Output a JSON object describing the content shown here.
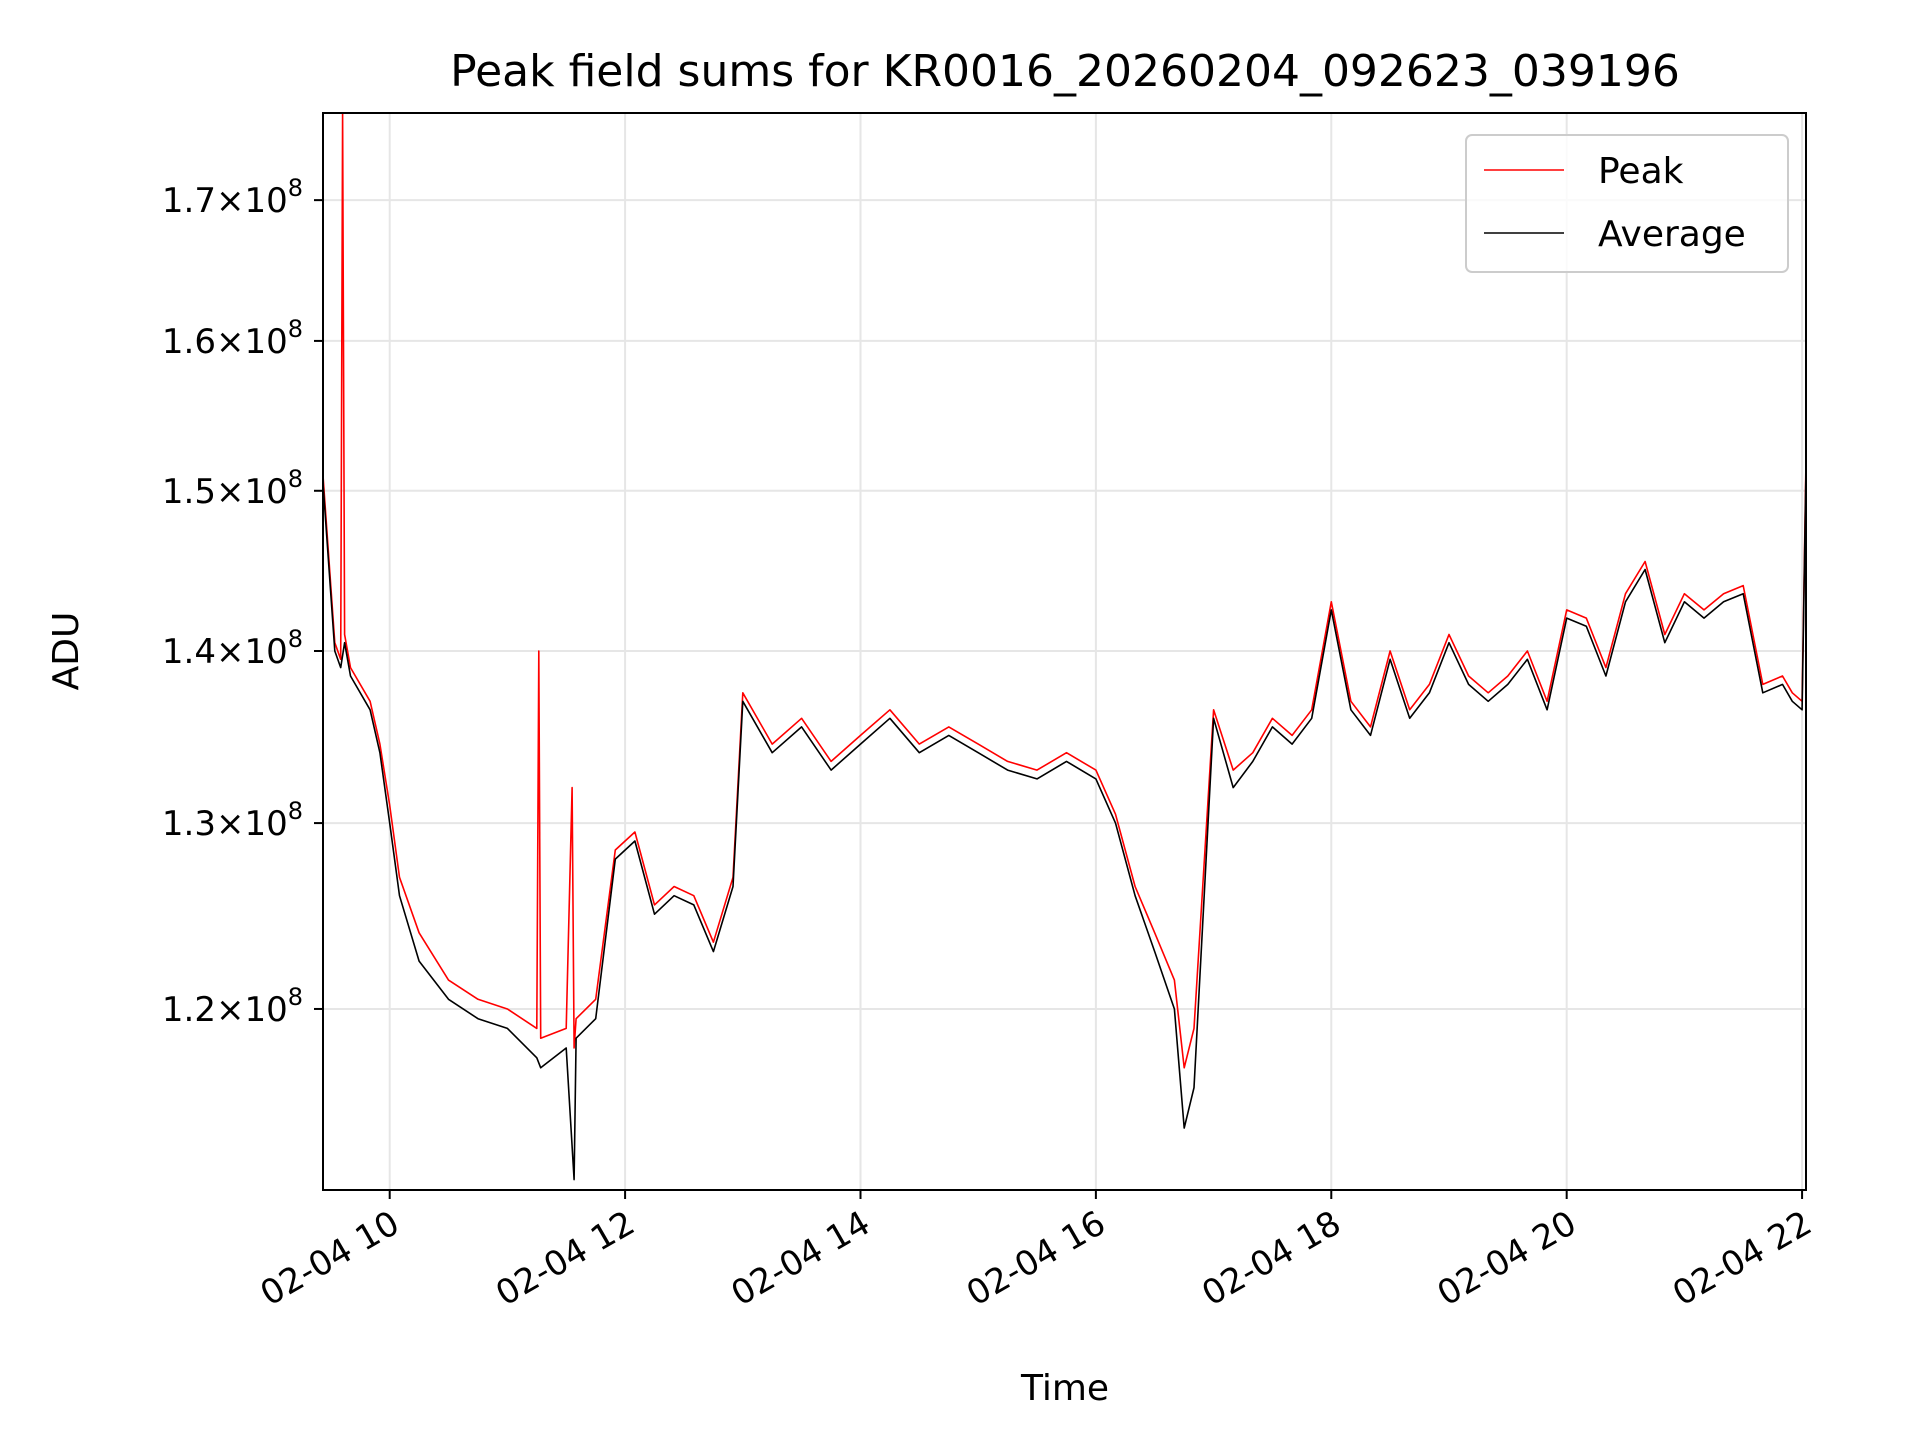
{
  "chart_data": {
    "type": "line",
    "title": "Peak field sums for KR0016_20260204_092623_039196",
    "xlabel": "Time",
    "ylabel": "ADU",
    "x_axis": "datetime",
    "xlim": [
      "2026-02-04 09:26",
      "2026-02-04 22:02"
    ],
    "ylim": [
      111000000,
      176500000
    ],
    "y_scale": "log",
    "x_ticks": [
      "02-04 10",
      "02-04 12",
      "02-04 14",
      "02-04 16",
      "02-04 18",
      "02-04 20",
      "02-04 22"
    ],
    "y_ticks": [
      {
        "base": "1.2",
        "exp": "8",
        "value": 120000000
      },
      {
        "base": "1.3",
        "exp": "8",
        "value": 130000000
      },
      {
        "base": "1.4",
        "exp": "8",
        "value": 140000000
      },
      {
        "base": "1.5",
        "exp": "8",
        "value": 150000000
      },
      {
        "base": "1.6",
        "exp": "8",
        "value": 160000000
      },
      {
        "base": "1.7",
        "exp": "8",
        "value": 170000000
      }
    ],
    "grid": true,
    "legend_position": "upper right",
    "series": [
      {
        "name": "Peak",
        "color": "#ff0000",
        "x": [
          "2026-02-04 09:26",
          "2026-02-04 09:32",
          "2026-02-04 09:35",
          "2026-02-04 09:36",
          "2026-02-04 09:37",
          "2026-02-04 09:40",
          "2026-02-04 09:50",
          "2026-02-04 09:55",
          "2026-02-04 10:00",
          "2026-02-04 10:05",
          "2026-02-04 10:15",
          "2026-02-04 10:30",
          "2026-02-04 10:45",
          "2026-02-04 11:00",
          "2026-02-04 11:15",
          "2026-02-04 11:16",
          "2026-02-04 11:17",
          "2026-02-04 11:30",
          "2026-02-04 11:33",
          "2026-02-04 11:34",
          "2026-02-04 11:35",
          "2026-02-04 11:45",
          "2026-02-04 11:55",
          "2026-02-04 12:05",
          "2026-02-04 12:15",
          "2026-02-04 12:25",
          "2026-02-04 12:35",
          "2026-02-04 12:45",
          "2026-02-04 12:55",
          "2026-02-04 13:00",
          "2026-02-04 13:15",
          "2026-02-04 13:30",
          "2026-02-04 13:45",
          "2026-02-04 14:00",
          "2026-02-04 14:15",
          "2026-02-04 14:30",
          "2026-02-04 14:45",
          "2026-02-04 15:00",
          "2026-02-04 15:15",
          "2026-02-04 15:30",
          "2026-02-04 15:45",
          "2026-02-04 16:00",
          "2026-02-04 16:10",
          "2026-02-04 16:20",
          "2026-02-04 16:30",
          "2026-02-04 16:40",
          "2026-02-04 16:45",
          "2026-02-04 16:50",
          "2026-02-04 17:00",
          "2026-02-04 17:10",
          "2026-02-04 17:20",
          "2026-02-04 17:30",
          "2026-02-04 17:40",
          "2026-02-04 17:50",
          "2026-02-04 18:00",
          "2026-02-04 18:10",
          "2026-02-04 18:20",
          "2026-02-04 18:30",
          "2026-02-04 18:40",
          "2026-02-04 18:50",
          "2026-02-04 19:00",
          "2026-02-04 19:10",
          "2026-02-04 19:20",
          "2026-02-04 19:30",
          "2026-02-04 19:40",
          "2026-02-04 19:50",
          "2026-02-04 20:00",
          "2026-02-04 20:10",
          "2026-02-04 20:20",
          "2026-02-04 20:30",
          "2026-02-04 20:40",
          "2026-02-04 20:50",
          "2026-02-04 21:00",
          "2026-02-04 21:10",
          "2026-02-04 21:20",
          "2026-02-04 21:30",
          "2026-02-04 21:40",
          "2026-02-04 21:50",
          "2026-02-04 21:55",
          "2026-02-04 22:00",
          "2026-02-04 22:02"
        ],
        "y": [
          151000000,
          140500000,
          139500000,
          176500000,
          141000000,
          139000000,
          137000000,
          134500000,
          131000000,
          127000000,
          124000000,
          121500000,
          120500000,
          120000000,
          119000000,
          140000000,
          118500000,
          119000000,
          132000000,
          118000000,
          119500000,
          120500000,
          128500000,
          129500000,
          125500000,
          126500000,
          126000000,
          123500000,
          127000000,
          137500000,
          134500000,
          136000000,
          133500000,
          135000000,
          136500000,
          134500000,
          135500000,
          134500000,
          133500000,
          133000000,
          134000000,
          133000000,
          130500000,
          126500000,
          124000000,
          121500000,
          117000000,
          119000000,
          136500000,
          133000000,
          134000000,
          136000000,
          135000000,
          136500000,
          143000000,
          137000000,
          135500000,
          140000000,
          136500000,
          138000000,
          141000000,
          138500000,
          137500000,
          138500000,
          140000000,
          137000000,
          142500000,
          142000000,
          139000000,
          143500000,
          145500000,
          141000000,
          143500000,
          142500000,
          143500000,
          144000000,
          138000000,
          138500000,
          137500000,
          137000000,
          152000000
        ]
      },
      {
        "name": "Average",
        "color": "#000000",
        "x": [
          "2026-02-04 09:26",
          "2026-02-04 09:32",
          "2026-02-04 09:35",
          "2026-02-04 09:37",
          "2026-02-04 09:40",
          "2026-02-04 09:50",
          "2026-02-04 09:55",
          "2026-02-04 10:00",
          "2026-02-04 10:05",
          "2026-02-04 10:15",
          "2026-02-04 10:30",
          "2026-02-04 10:45",
          "2026-02-04 11:00",
          "2026-02-04 11:15",
          "2026-02-04 11:17",
          "2026-02-04 11:30",
          "2026-02-04 11:34",
          "2026-02-04 11:35",
          "2026-02-04 11:45",
          "2026-02-04 11:55",
          "2026-02-04 12:05",
          "2026-02-04 12:15",
          "2026-02-04 12:25",
          "2026-02-04 12:35",
          "2026-02-04 12:45",
          "2026-02-04 12:55",
          "2026-02-04 13:00",
          "2026-02-04 13:15",
          "2026-02-04 13:30",
          "2026-02-04 13:45",
          "2026-02-04 14:00",
          "2026-02-04 14:15",
          "2026-02-04 14:30",
          "2026-02-04 14:45",
          "2026-02-04 15:00",
          "2026-02-04 15:15",
          "2026-02-04 15:30",
          "2026-02-04 15:45",
          "2026-02-04 16:00",
          "2026-02-04 16:10",
          "2026-02-04 16:20",
          "2026-02-04 16:30",
          "2026-02-04 16:40",
          "2026-02-04 16:45",
          "2026-02-04 16:50",
          "2026-02-04 17:00",
          "2026-02-04 17:10",
          "2026-02-04 17:20",
          "2026-02-04 17:30",
          "2026-02-04 17:40",
          "2026-02-04 17:50",
          "2026-02-04 18:00",
          "2026-02-04 18:10",
          "2026-02-04 18:20",
          "2026-02-04 18:30",
          "2026-02-04 18:40",
          "2026-02-04 18:50",
          "2026-02-04 19:00",
          "2026-02-04 19:10",
          "2026-02-04 19:20",
          "2026-02-04 19:30",
          "2026-02-04 19:40",
          "2026-02-04 19:50",
          "2026-02-04 20:00",
          "2026-02-04 20:10",
          "2026-02-04 20:20",
          "2026-02-04 20:30",
          "2026-02-04 20:40",
          "2026-02-04 20:50",
          "2026-02-04 21:00",
          "2026-02-04 21:10",
          "2026-02-04 21:20",
          "2026-02-04 21:30",
          "2026-02-04 21:40",
          "2026-02-04 21:50",
          "2026-02-04 21:55",
          "2026-02-04 22:00",
          "2026-02-04 22:02"
        ],
        "y": [
          150500000,
          140000000,
          139000000,
          140500000,
          138500000,
          136500000,
          134000000,
          130000000,
          126000000,
          122500000,
          120500000,
          119500000,
          119000000,
          117500000,
          117000000,
          118000000,
          111500000,
          118500000,
          119500000,
          128000000,
          129000000,
          125000000,
          126000000,
          125500000,
          123000000,
          126500000,
          137000000,
          134000000,
          135500000,
          133000000,
          134500000,
          136000000,
          134000000,
          135000000,
          134000000,
          133000000,
          132500000,
          133500000,
          132500000,
          130000000,
          126000000,
          123000000,
          120000000,
          114000000,
          116000000,
          136000000,
          132000000,
          133500000,
          135500000,
          134500000,
          136000000,
          142500000,
          136500000,
          135000000,
          139500000,
          136000000,
          137500000,
          140500000,
          138000000,
          137000000,
          138000000,
          139500000,
          136500000,
          142000000,
          141500000,
          138500000,
          143000000,
          145000000,
          140500000,
          143000000,
          142000000,
          143000000,
          143500000,
          137500000,
          138000000,
          137000000,
          136500000,
          151500000
        ]
      }
    ]
  }
}
